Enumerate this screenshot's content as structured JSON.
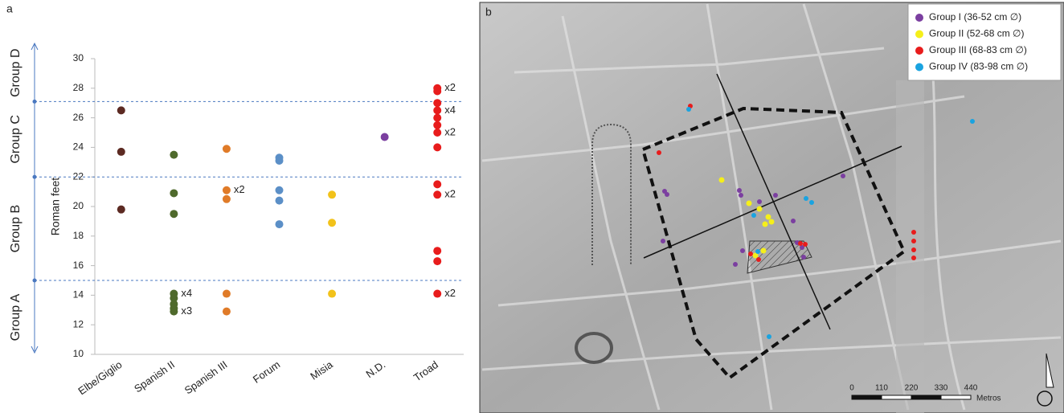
{
  "chart_data": {
    "type": "scatter",
    "panel_label": "a",
    "ylabel": "Roman feet",
    "categories": [
      "Elbe/Giglio",
      "Spanish II",
      "Spanish III",
      "Forum",
      "Misia",
      "N.D.",
      "Troad"
    ],
    "colors": [
      "#5c2a22",
      "#4f6a2c",
      "#e07b28",
      "#5b8fc7",
      "#f2c21a",
      "#7b3fa0",
      "#e81c1c"
    ],
    "values": [
      [
        26.5,
        23.7,
        19.8
      ],
      [
        23.5,
        20.9,
        19.5,
        14.1,
        13.8,
        13.4,
        13.1,
        12.9
      ],
      [
        23.9,
        21.1,
        20.5,
        14.1,
        12.9
      ],
      [
        23.3,
        23.1,
        21.1,
        20.4,
        18.8
      ],
      [
        20.8,
        18.9,
        14.1
      ],
      [
        24.7
      ],
      [
        28.0,
        27.8,
        27.0,
        26.5,
        26.0,
        25.5,
        25.0,
        24.0,
        21.5,
        20.8,
        17.0,
        16.3,
        14.1
      ]
    ],
    "multiplicity_labels": [
      [
        null,
        null,
        null
      ],
      [
        null,
        null,
        null,
        "x4",
        null,
        null,
        null,
        "x3"
      ],
      [
        null,
        "x2",
        null,
        null,
        null
      ],
      [
        null,
        null,
        null,
        null,
        null
      ],
      [
        null,
        null,
        null
      ],
      [
        null
      ],
      [
        "x2",
        null,
        null,
        "x4",
        null,
        null,
        "x2",
        null,
        null,
        "x2",
        null,
        null,
        "x2"
      ]
    ],
    "ylim": [
      10,
      30
    ],
    "yticks": [
      10,
      12,
      14,
      16,
      18,
      20,
      22,
      24,
      26,
      28,
      30
    ],
    "group_labels": [
      "Group A",
      "Group B",
      "Group C",
      "Group D"
    ],
    "group_bounds": [
      15,
      22,
      27.1
    ],
    "group_line_color": "#4a78c0"
  },
  "map": {
    "panel_label": "b",
    "legend": [
      {
        "label": "Group I (36-52 cm ∅)",
        "color": "#7b3fa0"
      },
      {
        "label": "Group II (52-68 cm ∅)",
        "color": "#f5ef1a"
      },
      {
        "label": "Group III (68-83 cm ∅)",
        "color": "#e81c1c"
      },
      {
        "label": "Group IV (83-98 cm ∅)",
        "color": "#1aa3e0"
      }
    ],
    "scale_ticks": [
      0,
      110,
      220,
      330,
      440
    ],
    "scale_unit": "Metros"
  }
}
